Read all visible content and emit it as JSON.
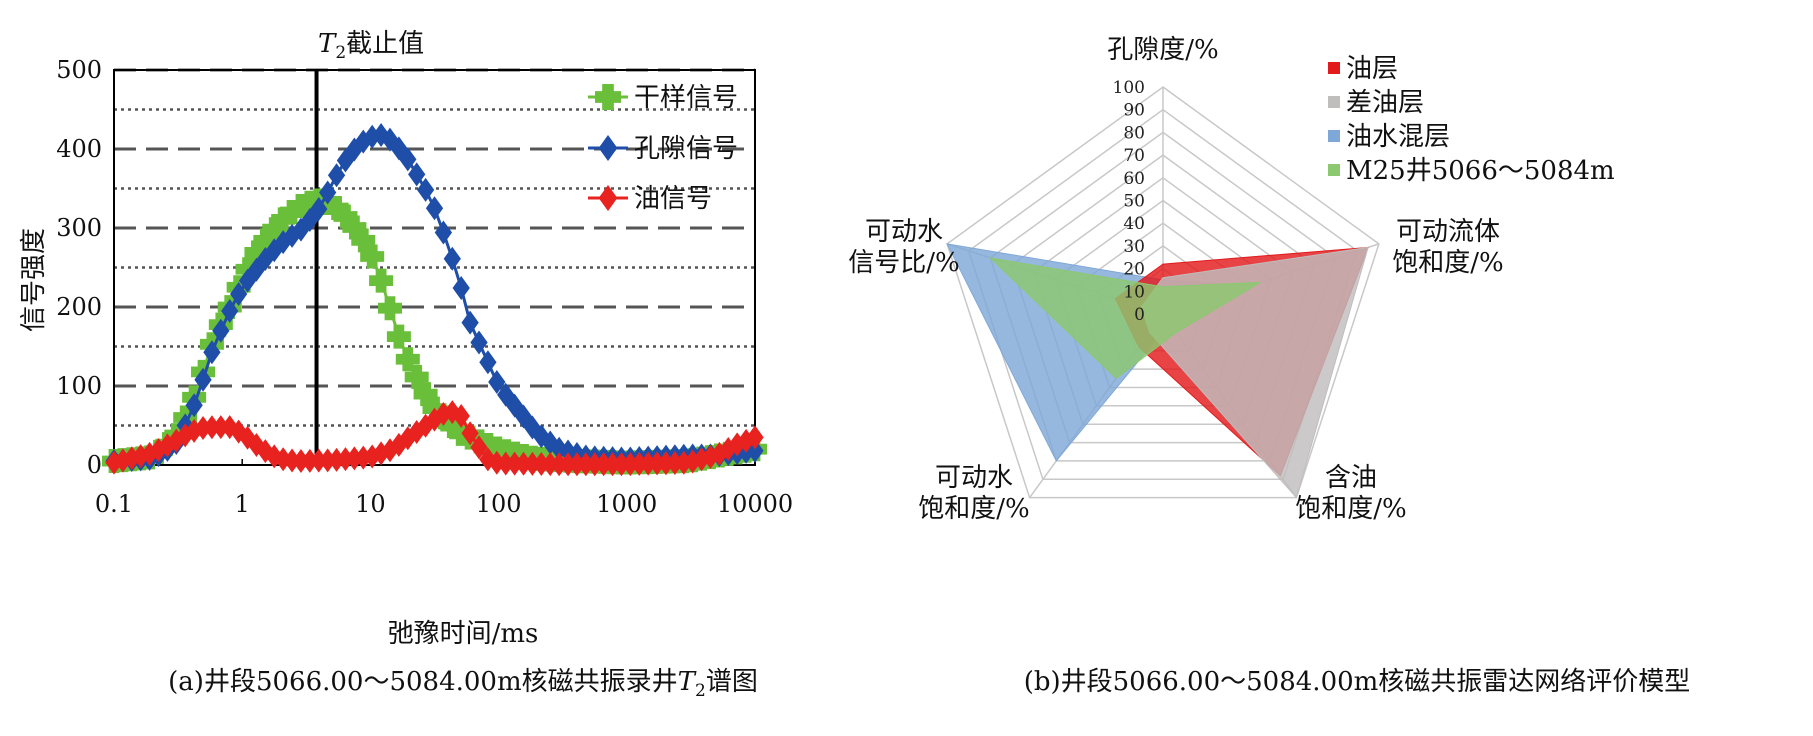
{
  "chart_data": [
    {
      "type": "line",
      "xscale": "log",
      "xlim": [
        0.1,
        10000
      ],
      "ylim": [
        0,
        500
      ],
      "x_ticks": [
        "0.1",
        "1",
        "10",
        "100",
        "1000",
        "10000"
      ],
      "y_ticks": [
        "0",
        "100",
        "200",
        "300",
        "400",
        "500"
      ],
      "xlabel": "弛豫时间/ms",
      "ylabel": "信号强度",
      "caption_prefix": "(a)井段5066.00～5084.00m核磁共振录井",
      "caption_suffix": "谱图",
      "caption_t_symbol": "T",
      "caption_t_sub": "2",
      "cutoff": {
        "label_symbol": "T",
        "label_sub": "2",
        "label_text": "截止值",
        "x": 3.8
      },
      "grid": "horizontal dashed and dotted",
      "legend_position": "top-right",
      "colors": {
        "dry": "#6abf3a",
        "pore": "#1f4ea8",
        "oil": "#e8221f"
      },
      "series": [
        {
          "name": "干样信号",
          "marker": "cross",
          "points": [
            [
              0.1,
              5
            ],
            [
              0.2,
              10
            ],
            [
              0.3,
              35
            ],
            [
              0.4,
              75
            ],
            [
              0.5,
              120
            ],
            [
              0.6,
              160
            ],
            [
              0.8,
              200
            ],
            [
              1.0,
              235
            ],
            [
              1.3,
              270
            ],
            [
              1.7,
              295
            ],
            [
              2.2,
              315
            ],
            [
              3.0,
              330
            ],
            [
              4.0,
              335
            ],
            [
              5.0,
              330
            ],
            [
              6.0,
              320
            ],
            [
              8.0,
              295
            ],
            [
              10.0,
              270
            ],
            [
              13.0,
              220
            ],
            [
              16.0,
              170
            ],
            [
              20.0,
              130
            ],
            [
              25.0,
              100
            ],
            [
              30.0,
              75
            ],
            [
              40.0,
              55
            ],
            [
              50.0,
              40
            ],
            [
              70.0,
              30
            ],
            [
              100.0,
              20
            ],
            [
              150.0,
              12
            ],
            [
              200.0,
              8
            ],
            [
              400.0,
              5
            ],
            [
              1000.0,
              3
            ],
            [
              3000.0,
              5
            ],
            [
              10000.0,
              20
            ]
          ]
        },
        {
          "name": "孔隙信号",
          "marker": "diamond",
          "points": [
            [
              0.1,
              5
            ],
            [
              0.2,
              8
            ],
            [
              0.3,
              25
            ],
            [
              0.4,
              65
            ],
            [
              0.5,
              110
            ],
            [
              0.6,
              150
            ],
            [
              0.8,
              195
            ],
            [
              1.0,
              225
            ],
            [
              1.5,
              260
            ],
            [
              2.0,
              280
            ],
            [
              3.0,
              300
            ],
            [
              4.0,
              325
            ],
            [
              5.0,
              355
            ],
            [
              6.0,
              380
            ],
            [
              8.0,
              405
            ],
            [
              10.0,
              415
            ],
            [
              12.0,
              418
            ],
            [
              15.0,
              410
            ],
            [
              20.0,
              385
            ],
            [
              30.0,
              335
            ],
            [
              40.0,
              280
            ],
            [
              50.0,
              230
            ],
            [
              60.0,
              180
            ],
            [
              80.0,
              135
            ],
            [
              100.0,
              100
            ],
            [
              150.0,
              65
            ],
            [
              200.0,
              40
            ],
            [
              300.0,
              20
            ],
            [
              500.0,
              10
            ],
            [
              1000.0,
              8
            ],
            [
              3000.0,
              12
            ],
            [
              5000.0,
              12
            ],
            [
              10000.0,
              18
            ]
          ]
        },
        {
          "name": "油信号",
          "marker": "diamond",
          "points": [
            [
              0.1,
              3
            ],
            [
              0.2,
              15
            ],
            [
              0.3,
              30
            ],
            [
              0.4,
              42
            ],
            [
              0.5,
              47
            ],
            [
              0.6,
              48
            ],
            [
              0.8,
              48
            ],
            [
              1.0,
              40
            ],
            [
              1.3,
              25
            ],
            [
              1.7,
              12
            ],
            [
              2.2,
              6
            ],
            [
              3.0,
              5
            ],
            [
              5.0,
              6
            ],
            [
              10.0,
              10
            ],
            [
              15.0,
              20
            ],
            [
              20.0,
              35
            ],
            [
              30.0,
              55
            ],
            [
              40.0,
              68
            ],
            [
              50.0,
              65
            ],
            [
              60.0,
              40
            ],
            [
              80.0,
              8
            ],
            [
              100.0,
              2
            ],
            [
              300.0,
              1
            ],
            [
              1000.0,
              1
            ],
            [
              3000.0,
              3
            ],
            [
              5000.0,
              12
            ],
            [
              7000.0,
              25
            ],
            [
              10000.0,
              35
            ]
          ]
        }
      ]
    },
    {
      "type": "radar",
      "rlim": [
        0,
        100
      ],
      "r_ticks": [
        "0",
        "10",
        "20",
        "30",
        "40",
        "50",
        "60",
        "70",
        "80",
        "90",
        "100"
      ],
      "axes": [
        {
          "lines": [
            "孔隙度/%"
          ]
        },
        {
          "lines": [
            "可动流体",
            "饱和度/%"
          ]
        },
        {
          "lines": [
            "含油",
            "饱和度/%"
          ]
        },
        {
          "lines": [
            "可动水",
            "饱和度/%"
          ]
        },
        {
          "lines": [
            "可动水",
            "信号比/%"
          ]
        }
      ],
      "caption": "(b)井段5066.00～5084.00m核磁共振雷达网络评价模型",
      "legend_position": "top-right",
      "series": [
        {
          "name": "油水混层",
          "color": "#7fa8d8",
          "values": [
            15,
            40,
            5,
            80,
            100
          ]
        },
        {
          "name": "油层",
          "color": "#e31a1c",
          "values": [
            22,
            95,
            88,
            18,
            22
          ]
        },
        {
          "name": "差油层",
          "color": "#c0bdbd",
          "values": [
            16,
            95,
            100,
            10,
            10
          ]
        },
        {
          "name": "M25井5066～5084m",
          "color": "#8cc870",
          "values": [
            12,
            45,
            10,
            35,
            80
          ]
        }
      ]
    }
  ]
}
